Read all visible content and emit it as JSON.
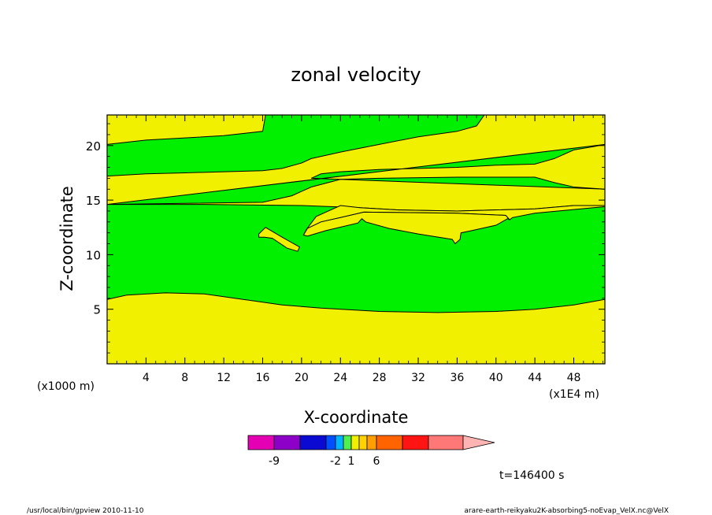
{
  "chart_data": {
    "type": "heatmap",
    "title": "zonal velocity",
    "xlabel": "X-coordinate",
    "ylabel": "Z-coordinate",
    "x_unit_left": "(x1000 m)",
    "x_unit_right": "(x1E4 m)",
    "x_ticks": [
      4,
      8,
      12,
      16,
      20,
      24,
      28,
      32,
      36,
      40,
      44,
      48
    ],
    "y_ticks": [
      5,
      10,
      15,
      20
    ],
    "xlim": [
      0,
      51.2
    ],
    "ylim": [
      0,
      22.8
    ],
    "fields": {
      "background_level": "above 1",
      "bands": [
        {
          "level": "0 to 1",
          "color": "#00f000",
          "top": [
            [
              0,
              20.1
            ],
            [
              4,
              20.5
            ],
            [
              8,
              20.7
            ],
            [
              12,
              20.9
            ],
            [
              16,
              21.3
            ],
            [
              16.3,
              22.8
            ]
          ],
          "bottom": [
            [
              0,
              17.2
            ],
            [
              4,
              17.4
            ],
            [
              8,
              17.5
            ],
            [
              12,
              17.6
            ],
            [
              16,
              17.7
            ],
            [
              18,
              17.9
            ],
            [
              20,
              18.4
            ],
            [
              21,
              18.8
            ],
            [
              24,
              19.4
            ],
            [
              28,
              20.1
            ],
            [
              32,
              20.8
            ],
            [
              36,
              21.3
            ],
            [
              38,
              21.8
            ],
            [
              38.8,
              22.8
            ]
          ]
        },
        {
          "level": "0 to 1",
          "color": "#00f000",
          "top": [
            [
              51.2,
              20.1
            ],
            [
              50,
              19.9
            ],
            [
              48,
              19.6
            ],
            [
              46,
              18.8
            ],
            [
              44,
              18.3
            ],
            [
              40,
              18.2
            ],
            [
              36,
              18.0
            ],
            [
              32,
              17.9
            ],
            [
              28,
              17.8
            ],
            [
              24,
              17.6
            ],
            [
              22,
              17.4
            ],
            [
              21,
              17.0
            ]
          ],
          "bottom": [
            [
              0,
              14.6
            ],
            [
              8,
              14.7
            ],
            [
              16,
              14.8
            ],
            [
              19,
              15.4
            ],
            [
              21,
              16.2
            ],
            [
              24,
              16.9
            ],
            [
              28,
              17.0
            ],
            [
              36,
              17.1
            ],
            [
              44,
              17.1
            ],
            [
              46,
              16.6
            ],
            [
              48,
              16.2
            ],
            [
              51.2,
              16.0
            ]
          ]
        },
        {
          "level": "0 to 1",
          "color": "#00f000",
          "top": [
            [
              0,
              14.6
            ],
            [
              10,
              14.6
            ],
            [
              20,
              14.5
            ],
            [
              26,
              14.3
            ],
            [
              30,
              14.1
            ],
            [
              36,
              14.0
            ],
            [
              44,
              14.2
            ],
            [
              48,
              14.5
            ],
            [
              51.2,
              14.5
            ]
          ],
          "bottom": [
            [
              0,
              5.9
            ],
            [
              2,
              6.3
            ],
            [
              6,
              6.5
            ],
            [
              10,
              6.4
            ],
            [
              14,
              5.9
            ],
            [
              18,
              5.4
            ],
            [
              22,
              5.1
            ],
            [
              28,
              4.8
            ],
            [
              34,
              4.7
            ],
            [
              40,
              4.8
            ],
            [
              44,
              5.0
            ],
            [
              48,
              5.4
            ],
            [
              51.2,
              5.9
            ]
          ]
        }
      ],
      "islands": [
        {
          "level": "above 1",
          "color": "#f0f000",
          "outline": [
            [
              15.6,
              11.9
            ],
            [
              16.3,
              12.5
            ],
            [
              18,
              11.6
            ],
            [
              19.8,
              10.7
            ],
            [
              19.6,
              10.3
            ],
            [
              18.5,
              10.6
            ],
            [
              17,
              11.5
            ],
            [
              16.2,
              11.6
            ],
            [
              15.6,
              11.6
            ]
          ]
        },
        {
          "level": "above 1",
          "color": "#f0f000",
          "outline": [
            [
              20.2,
              11.8
            ],
            [
              20.6,
              12.4
            ],
            [
              22,
              13.0
            ],
            [
              24,
              13.4
            ],
            [
              26.4,
              13.9
            ],
            [
              36,
              13.8
            ],
            [
              41,
              13.6
            ],
            [
              41.4,
              13.2
            ],
            [
              41.7,
              13.4
            ],
            [
              44,
              13.8
            ],
            [
              51.2,
              14.4
            ],
            [
              51.2,
              14.5
            ],
            [
              48,
              14.5
            ],
            [
              44,
              14.2
            ],
            [
              36,
              14.0
            ],
            [
              30,
              14.1
            ],
            [
              26,
              14.3
            ],
            [
              24,
              14.5
            ],
            [
              21.5,
              13.5
            ],
            [
              20.5,
              12.3
            ]
          ]
        },
        {
          "level": "above 1",
          "color": "#f0f000",
          "outline": [
            [
              20.2,
              11.8
            ],
            [
              20.6,
              11.7
            ],
            [
              22.5,
              12.2
            ],
            [
              25.8,
              12.9
            ],
            [
              26.2,
              13.3
            ],
            [
              26.6,
              13.0
            ],
            [
              29,
              12.4
            ],
            [
              32,
              11.9
            ],
            [
              35.5,
              11.4
            ],
            [
              35.8,
              11.0
            ],
            [
              36.3,
              11.4
            ],
            [
              36.4,
              12.0
            ],
            [
              37.5,
              12.2
            ],
            [
              40,
              12.7
            ],
            [
              41.2,
              13.3
            ],
            [
              41.4,
              13.2
            ],
            [
              41,
              13.6
            ],
            [
              36,
              13.8
            ],
            [
              26.4,
              13.9
            ],
            [
              24,
              13.4
            ],
            [
              22,
              13.0
            ],
            [
              20.6,
              12.4
            ]
          ]
        }
      ]
    },
    "colorbar": {
      "colors": [
        "#e600b4",
        "#8c00c8",
        "#0a0ad2",
        "#0050ff",
        "#00b4ff",
        "#50f050",
        "#f0f000",
        "#ffd200",
        "#ffa000",
        "#ff6400",
        "#ff1414",
        "#ff7878",
        "#ffb4b4"
      ],
      "tick_labels": [
        {
          "label": "-9",
          "segment": 1
        },
        {
          "label": "-2",
          "segment": 4
        },
        {
          "label": "1",
          "segment": 6
        },
        {
          "label": "6",
          "segment": 9
        }
      ]
    },
    "time_label": "t=146400 s"
  },
  "footer": {
    "left": "/usr/local/bin/gpview  2010-11-10",
    "right": "arare-earth-reikyaku2K-absorbing5-noEvap_VelX.nc@VelX"
  }
}
